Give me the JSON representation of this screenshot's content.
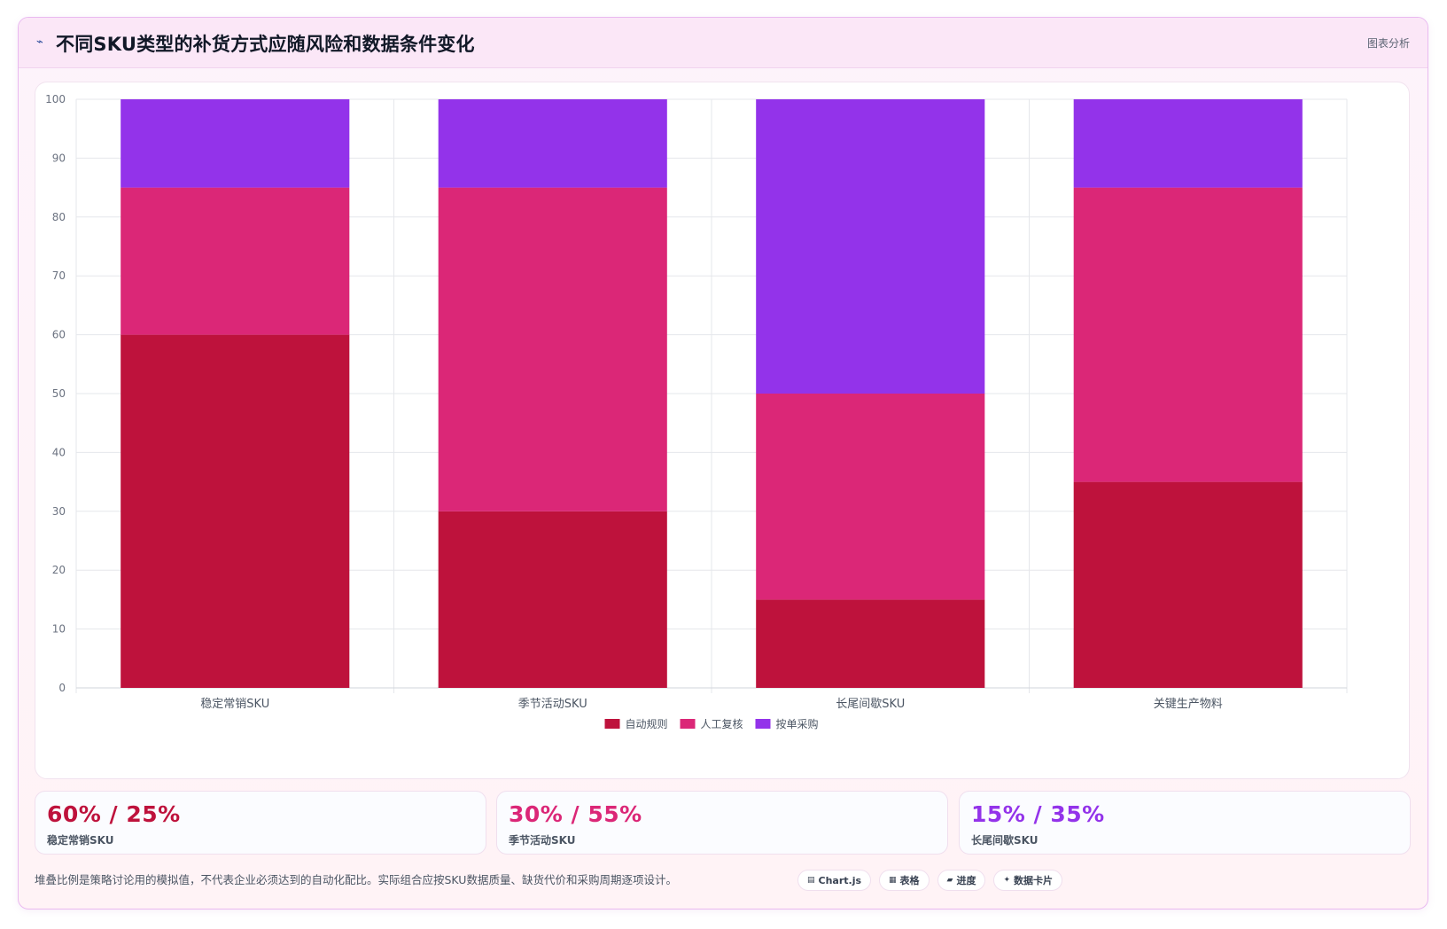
{
  "header": {
    "icon": "chart-line-icon",
    "title": "不同SKU类型的补货方式应随风险和数据条件变化",
    "tag": "图表分析"
  },
  "chart_data": {
    "type": "bar",
    "stacked": true,
    "categories": [
      "稳定常销SKU",
      "季节活动SKU",
      "长尾间歇SKU",
      "关键生产物料"
    ],
    "series": [
      {
        "name": "自动规则",
        "color": "#be123c",
        "values": [
          60,
          30,
          15,
          35
        ]
      },
      {
        "name": "人工复核",
        "color": "#db2777",
        "values": [
          25,
          55,
          35,
          50
        ]
      },
      {
        "name": "按单采购",
        "color": "#9333ea",
        "values": [
          15,
          15,
          50,
          15
        ]
      }
    ],
    "ylim": [
      0,
      100
    ],
    "yticks": [
      0,
      10,
      20,
      30,
      40,
      50,
      60,
      70,
      80,
      90,
      100
    ],
    "grid": true,
    "legend": "bottom"
  },
  "kpis": [
    {
      "value": "60% / 25%",
      "label": "稳定常销SKU",
      "color": "#be123c"
    },
    {
      "value": "30% / 55%",
      "label": "季节活动SKU",
      "color": "#db2777"
    },
    {
      "value": "15% / 35%",
      "label": "长尾间歇SKU",
      "color": "#9333ea"
    }
  ],
  "footnote": "堆叠比例是策略讨论用的模拟值，不代表企业必须达到的自动化配比。实际组合应按SKU数据质量、缺货代价和采购周期逐项设计。",
  "chips": [
    {
      "label": "Chart.js",
      "icon": "chart-icon",
      "glyph": "▤"
    },
    {
      "label": "表格",
      "icon": "table-icon",
      "glyph": "▦"
    },
    {
      "label": "进度",
      "icon": "progress-icon",
      "glyph": "▰"
    },
    {
      "label": "数据卡片",
      "icon": "sparkle-icon",
      "glyph": "✦"
    }
  ]
}
